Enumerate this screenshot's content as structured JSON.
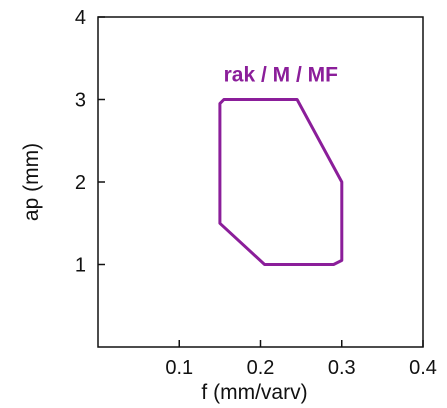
{
  "chart_data": {
    "type": "line",
    "title": "",
    "xlabel": "f (mm/varv)",
    "ylabel": "ap (mm)",
    "xlim": [
      0,
      0.4
    ],
    "ylim": [
      0,
      4
    ],
    "x_ticks": [
      "0.1",
      "0.2",
      "0.3",
      "0.4"
    ],
    "y_ticks": [
      "1",
      "2",
      "3",
      "4"
    ],
    "grid": false,
    "annotation": "rak / M / MF",
    "series": [
      {
        "name": "rak / M / MF",
        "color": "#8b1e9a",
        "closed": true,
        "points": [
          {
            "x": 0.15,
            "y": 2.95
          },
          {
            "x": 0.155,
            "y": 3.0
          },
          {
            "x": 0.245,
            "y": 3.0
          },
          {
            "x": 0.3,
            "y": 2.0
          },
          {
            "x": 0.3,
            "y": 1.05
          },
          {
            "x": 0.29,
            "y": 1.0
          },
          {
            "x": 0.205,
            "y": 1.0
          },
          {
            "x": 0.15,
            "y": 1.5
          }
        ]
      }
    ]
  }
}
